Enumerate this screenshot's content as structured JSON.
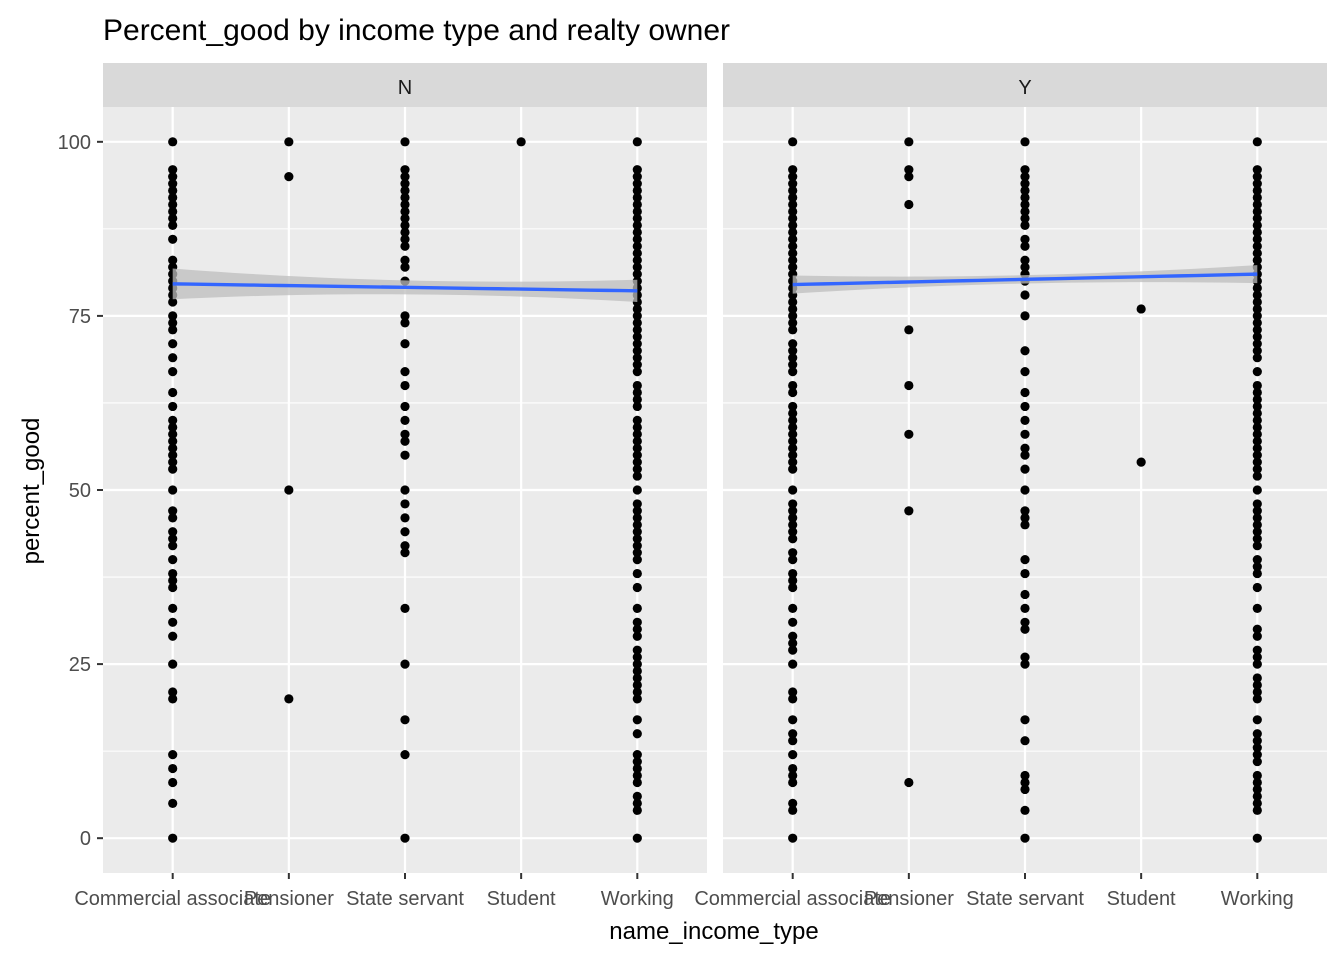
{
  "chart_data": {
    "type": "scatter",
    "title": "Percent_good by income type and realty owner",
    "xlabel": "name_income_type",
    "ylabel": "percent_good",
    "categories": [
      "Commercial associate",
      "Pensioner",
      "State servant",
      "Student",
      "Working"
    ],
    "ylim": [
      -5,
      105
    ],
    "yticks": [
      0,
      25,
      50,
      75,
      100
    ],
    "grid": true,
    "colors": {
      "panel_bg": "#ebebeb",
      "strip_bg": "#d9d9d9",
      "grid": "#ffffff",
      "points": "#000000",
      "smooth_line": "#3366ff",
      "ribbon": "#bdbdbd"
    },
    "facets": [
      {
        "label": "N",
        "points": {
          "Commercial associate": [
            0,
            5,
            8,
            10,
            12,
            20,
            21,
            25,
            29,
            31,
            33,
            36,
            37,
            38,
            40,
            42,
            43,
            44,
            46,
            47,
            50,
            53,
            54,
            55,
            56,
            57,
            58,
            59,
            60,
            62,
            64,
            67,
            69,
            71,
            73,
            74,
            75,
            77,
            78,
            79,
            80,
            81,
            82,
            83,
            86,
            88,
            89,
            90,
            91,
            92,
            93,
            94,
            95,
            96,
            100
          ],
          "Pensioner": [
            20,
            50,
            95,
            100
          ],
          "State servant": [
            0,
            12,
            17,
            25,
            33,
            41,
            42,
            44,
            46,
            48,
            50,
            55,
            57,
            58,
            60,
            62,
            65,
            67,
            71,
            74,
            75,
            80,
            82,
            83,
            85,
            86,
            87,
            88,
            89,
            90,
            91,
            92,
            93,
            94,
            95,
            96,
            100
          ],
          "Student": [
            100
          ],
          "Working": [
            0,
            4,
            5,
            6,
            8,
            9,
            10,
            11,
            12,
            15,
            17,
            20,
            21,
            22,
            23,
            24,
            25,
            26,
            27,
            29,
            30,
            31,
            33,
            36,
            38,
            40,
            41,
            42,
            43,
            44,
            45,
            46,
            47,
            48,
            50,
            52,
            53,
            54,
            55,
            56,
            57,
            58,
            59,
            60,
            62,
            63,
            64,
            65,
            67,
            68,
            69,
            70,
            71,
            72,
            73,
            74,
            75,
            76,
            77,
            78,
            79,
            80,
            81,
            82,
            83,
            84,
            85,
            86,
            87,
            88,
            89,
            90,
            91,
            92,
            93,
            94,
            95,
            96,
            100
          ]
        },
        "smooth": {
          "y_start": 79.6,
          "y_end": 78.6,
          "se_start": 2.2,
          "se_mid": 1.0,
          "se_end": 1.6
        }
      },
      {
        "label": "Y",
        "points": {
          "Commercial associate": [
            0,
            4,
            5,
            8,
            9,
            10,
            12,
            14,
            15,
            17,
            20,
            21,
            25,
            27,
            28,
            29,
            31,
            33,
            36,
            37,
            38,
            40,
            41,
            43,
            44,
            45,
            46,
            47,
            48,
            50,
            53,
            54,
            55,
            56,
            57,
            58,
            59,
            60,
            61,
            62,
            64,
            65,
            67,
            68,
            69,
            70,
            71,
            73,
            74,
            75,
            76,
            77,
            78,
            79,
            80,
            81,
            82,
            83,
            84,
            85,
            86,
            87,
            88,
            89,
            90,
            91,
            92,
            93,
            94,
            95,
            96,
            100
          ],
          "Pensioner": [
            8,
            47,
            58,
            65,
            73,
            91,
            95,
            96,
            100
          ],
          "State servant": [
            0,
            4,
            7,
            8,
            9,
            14,
            17,
            25,
            26,
            30,
            31,
            33,
            35,
            38,
            40,
            45,
            46,
            47,
            50,
            53,
            55,
            56,
            58,
            60,
            62,
            64,
            67,
            70,
            75,
            78,
            80,
            81,
            82,
            83,
            85,
            86,
            88,
            89,
            90,
            91,
            92,
            93,
            94,
            95,
            96,
            100
          ],
          "Student": [
            54,
            76
          ],
          "Working": [
            0,
            4,
            5,
            6,
            7,
            8,
            9,
            11,
            12,
            13,
            14,
            15,
            17,
            20,
            21,
            22,
            23,
            25,
            26,
            27,
            29,
            30,
            33,
            36,
            38,
            39,
            40,
            42,
            43,
            44,
            45,
            46,
            47,
            48,
            50,
            52,
            53,
            54,
            55,
            56,
            57,
            58,
            59,
            60,
            61,
            62,
            63,
            64,
            65,
            67,
            69,
            70,
            71,
            72,
            73,
            74,
            75,
            76,
            77,
            78,
            79,
            80,
            81,
            82,
            83,
            84,
            85,
            86,
            87,
            88,
            89,
            90,
            91,
            92,
            93,
            94,
            95,
            96,
            100
          ]
        },
        "smooth": {
          "y_start": 79.5,
          "y_end": 81.0,
          "se_start": 1.3,
          "se_mid": 0.6,
          "se_end": 1.3
        }
      }
    ]
  }
}
